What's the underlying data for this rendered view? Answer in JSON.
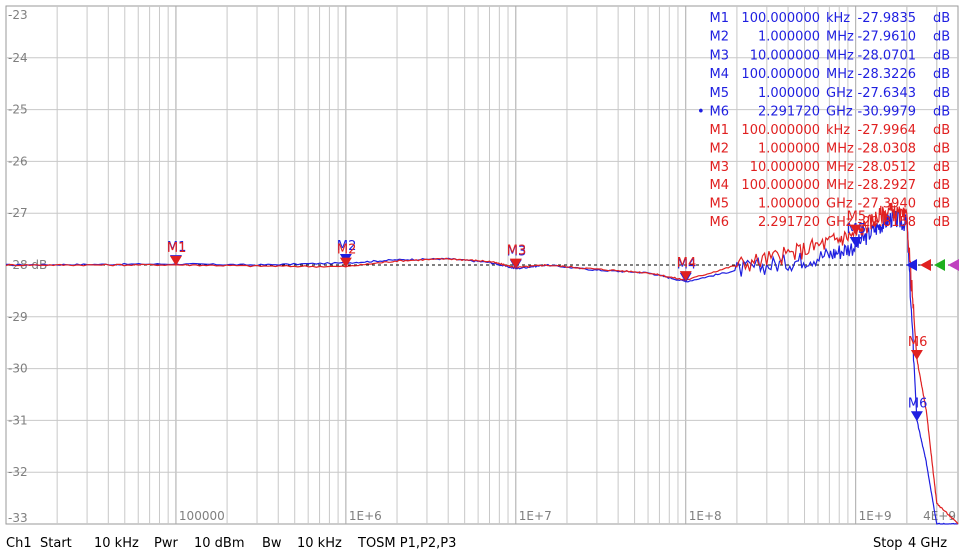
{
  "chart_data": {
    "type": "line",
    "x_scale": "log",
    "xlim": [
      "10 kHz",
      "4 GHz"
    ],
    "ylim": [
      -33,
      -23
    ],
    "grid": true,
    "reference_line": {
      "value": -28,
      "label": "-28 dB"
    },
    "y_ticks": [
      "-23",
      "-24",
      "-25",
      "-26",
      "-27",
      "-28 dB",
      "-29",
      "-30",
      "-31",
      "-32",
      "-33"
    ],
    "x_tick_labels": [
      "100000",
      "1E+6",
      "1E+7",
      "1E+8",
      "1E+9",
      "4E+9"
    ],
    "series": [
      {
        "color": "#1f1fe0",
        "x_hz": [
          10000,
          30000,
          100000,
          300000,
          1000000,
          2000000,
          4000000,
          7000000,
          10000000,
          15000000,
          30000000,
          60000000,
          100000000,
          200000000,
          400000000,
          700000000,
          1000000000,
          1300000000,
          1600000000,
          2000000000,
          2291720000,
          2600000000,
          3000000000,
          4000000000
        ],
        "y_db": [
          -28.0,
          -27.99,
          -27.98,
          -28.0,
          -27.96,
          -27.9,
          -27.88,
          -27.95,
          -28.07,
          -28.0,
          -28.1,
          -28.15,
          -28.32,
          -28.1,
          -27.95,
          -27.8,
          -27.63,
          -27.3,
          -27.1,
          -27.2,
          -30.998,
          -31.8,
          -33.0,
          -33.0
        ]
      },
      {
        "color": "#e02020",
        "x_hz": [
          10000,
          30000,
          100000,
          300000,
          1000000,
          2000000,
          4000000,
          7000000,
          10000000,
          15000000,
          30000000,
          60000000,
          100000000,
          200000000,
          400000000,
          700000000,
          1000000000,
          1300000000,
          1600000000,
          2000000000,
          2291720000,
          2600000000,
          3000000000,
          4000000000
        ],
        "y_db": [
          -28.0,
          -28.0,
          -27.996,
          -28.02,
          -28.031,
          -27.92,
          -27.88,
          -27.93,
          -28.051,
          -28.0,
          -28.08,
          -28.15,
          -28.293,
          -28.0,
          -27.8,
          -27.55,
          -27.394,
          -27.1,
          -26.95,
          -27.1,
          -29.816,
          -30.8,
          -32.6,
          -33.0
        ]
      }
    ],
    "markers": [
      {
        "label": "M1",
        "x_hz": 100000,
        "y_db": -27.9835,
        "series": 0
      },
      {
        "label": "M2",
        "x_hz": 1000000,
        "y_db": -27.961,
        "series": 0
      },
      {
        "label": "M3",
        "x_hz": 10000000,
        "y_db": -28.0701,
        "series": 0
      },
      {
        "label": "M4",
        "x_hz": 100000000,
        "y_db": -28.3226,
        "series": 0
      },
      {
        "label": "M5",
        "x_hz": 1000000000,
        "y_db": -27.6343,
        "series": 0
      },
      {
        "label": "M6",
        "x_hz": 2291720000,
        "y_db": -30.9979,
        "series": 0
      },
      {
        "label": "M1",
        "x_hz": 100000,
        "y_db": -27.9964,
        "series": 1
      },
      {
        "label": "M2",
        "x_hz": 1000000,
        "y_db": -28.0308,
        "series": 1
      },
      {
        "label": "M3",
        "x_hz": 10000000,
        "y_db": -28.0512,
        "series": 1
      },
      {
        "label": "M4",
        "x_hz": 100000000,
        "y_db": -28.2927,
        "series": 1
      },
      {
        "label": "M5",
        "x_hz": 1000000000,
        "y_db": -27.394,
        "series": 1
      },
      {
        "label": "M6",
        "x_hz": 2291720000,
        "y_db": -29.8158,
        "series": 1
      }
    ],
    "marker_table": {
      "series_0": [
        {
          "name": "M1",
          "freq": "100.000000",
          "unit": "kHz",
          "value": "-27.9835",
          "vunit": "dB",
          "active": ""
        },
        {
          "name": "M2",
          "freq": "1.000000",
          "unit": "MHz",
          "value": "-27.9610",
          "vunit": "dB",
          "active": ""
        },
        {
          "name": "M3",
          "freq": "10.000000",
          "unit": "MHz",
          "value": "-28.0701",
          "vunit": "dB",
          "active": ""
        },
        {
          "name": "M4",
          "freq": "100.000000",
          "unit": "MHz",
          "value": "-28.3226",
          "vunit": "dB",
          "active": ""
        },
        {
          "name": "M5",
          "freq": "1.000000",
          "unit": "GHz",
          "value": "-27.6343",
          "vunit": "dB",
          "active": ""
        },
        {
          "name": "M6",
          "freq": "2.291720",
          "unit": "GHz",
          "value": "-30.9979",
          "vunit": "dB",
          "active": "•"
        }
      ],
      "series_1": [
        {
          "name": "M1",
          "freq": "100.000000",
          "unit": "kHz",
          "value": "-27.9964",
          "vunit": "dB"
        },
        {
          "name": "M2",
          "freq": "1.000000",
          "unit": "MHz",
          "value": "-28.0308",
          "vunit": "dB"
        },
        {
          "name": "M3",
          "freq": "10.000000",
          "unit": "MHz",
          "value": "-28.0512",
          "vunit": "dB"
        },
        {
          "name": "M4",
          "freq": "100.000000",
          "unit": "MHz",
          "value": "-28.2927",
          "vunit": "dB"
        },
        {
          "name": "M5",
          "freq": "1.000000",
          "unit": "GHz",
          "value": "-27.3940",
          "vunit": "dB"
        },
        {
          "name": "M6",
          "freq": "2.291720",
          "unit": "GHz",
          "value": "-29.8158",
          "vunit": "dB"
        }
      ]
    },
    "ref_arrow_colors": [
      "#1f1fe0",
      "#e02020",
      "#20b020",
      "#c040c0"
    ]
  },
  "status_bar": {
    "channel": "Ch1",
    "start_label": "Start",
    "start_value": "10 kHz",
    "pwr_label": "Pwr",
    "pwr_value": "10 dBm",
    "bw_label": "Bw",
    "bw_value": "10 kHz",
    "cal": "TOSM P1,P2,P3",
    "stop_label": "Stop",
    "stop_value": "4 GHz"
  }
}
